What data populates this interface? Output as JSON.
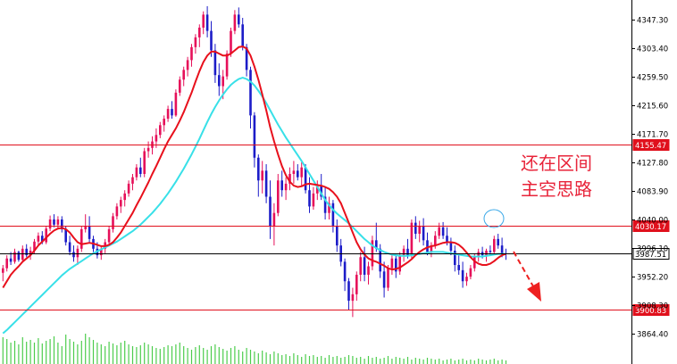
{
  "chart_data": {
    "type": "candlestick",
    "title": "",
    "y_axis": {
      "ticks": [
        4347.3,
        4303.4,
        4259.5,
        4215.6,
        4171.7,
        4127.8,
        4083.9,
        4040.0,
        3996.1,
        3952.2,
        3908.3,
        3864.4
      ],
      "tick_labels": [
        "4347.30",
        "4303.40",
        "4259.50",
        "4215.60",
        "4171.70",
        "4127.80",
        "4083.90",
        "4040.00",
        "3996.10",
        "3952.20",
        "3908.30",
        "3864.40"
      ],
      "range": [
        3838,
        4371
      ]
    },
    "levels": [
      {
        "name": "resistance",
        "value": 4155.47,
        "label": "4155.47",
        "color": "#e0101c",
        "box_fill": "#e0101c",
        "box_text": "#ffffff"
      },
      {
        "name": "resistance",
        "value": 4030.17,
        "label": "4030.17",
        "color": "#e0101c",
        "box_fill": "#e0101c",
        "box_text": "#ffffff"
      },
      {
        "name": "current",
        "value": 3987.51,
        "label": "3987.51",
        "color": "#000000",
        "box_fill": "#ffffff",
        "box_text": "#000000"
      },
      {
        "name": "support",
        "value": 3900.83,
        "label": "3900.83",
        "color": "#e0101c",
        "box_fill": "#e0101c",
        "box_text": "#ffffff"
      }
    ],
    "annotation_lines": [
      "还在区间",
      "主空思路"
    ],
    "colors": {
      "bull": "#e6105a",
      "bear": "#1c1cc8",
      "fast_ma": "#e8101c",
      "slow_ma": "#38e0e8",
      "volume": "#4ccc4c",
      "annotation": "#e8243a",
      "circle": "#3aa8e8",
      "arrow": "#ee2020"
    },
    "candles": [
      [
        3958,
        3970,
        3945,
        3965
      ],
      [
        3965,
        3985,
        3960,
        3980
      ],
      [
        3980,
        3990,
        3970,
        3975
      ],
      [
        3975,
        3995,
        3972,
        3990
      ],
      [
        3990,
        3992,
        3975,
        3978
      ],
      [
        3978,
        4000,
        3975,
        3995
      ],
      [
        3995,
        4002,
        3982,
        3985
      ],
      [
        3985,
        3998,
        3978,
        3992
      ],
      [
        3992,
        4010,
        3988,
        4006
      ],
      [
        4006,
        4020,
        4000,
        4015
      ],
      [
        4015,
        4022,
        4002,
        4005
      ],
      [
        4005,
        4030,
        4002,
        4026
      ],
      [
        4026,
        4046,
        4022,
        4040
      ],
      [
        4040,
        4048,
        4028,
        4032
      ],
      [
        4032,
        4045,
        4025,
        4040
      ],
      [
        4040,
        4045,
        4020,
        4025
      ],
      [
        4025,
        4030,
        4000,
        4005
      ],
      [
        4005,
        4015,
        3985,
        3990
      ],
      [
        3990,
        4000,
        3975,
        3982
      ],
      [
        3982,
        4000,
        3970,
        3995
      ],
      [
        3995,
        4030,
        3990,
        4025
      ],
      [
        4025,
        4048,
        4020,
        4030
      ],
      [
        4030,
        4045,
        4005,
        4010
      ],
      [
        4010,
        4015,
        3990,
        3995
      ],
      [
        3995,
        4005,
        3980,
        3985
      ],
      [
        3985,
        4000,
        3978,
        3995
      ],
      [
        3995,
        4010,
        3988,
        4005
      ],
      [
        4005,
        4030,
        4000,
        4025
      ],
      [
        4025,
        4050,
        4020,
        4045
      ],
      [
        4045,
        4065,
        4040,
        4060
      ],
      [
        4060,
        4075,
        4050,
        4070
      ],
      [
        4070,
        4085,
        4060,
        4080
      ],
      [
        4080,
        4100,
        4075,
        4095
      ],
      [
        4095,
        4110,
        4085,
        4105
      ],
      [
        4105,
        4125,
        4100,
        4120
      ],
      [
        4120,
        4135,
        4105,
        4110
      ],
      [
        4110,
        4150,
        4105,
        4145
      ],
      [
        4145,
        4160,
        4135,
        4150
      ],
      [
        4150,
        4168,
        4140,
        4160
      ],
      [
        4160,
        4180,
        4150,
        4170
      ],
      [
        4170,
        4190,
        4165,
        4185
      ],
      [
        4185,
        4200,
        4175,
        4195
      ],
      [
        4195,
        4215,
        4190,
        4210
      ],
      [
        4210,
        4222,
        4195,
        4200
      ],
      [
        4200,
        4240,
        4198,
        4235
      ],
      [
        4235,
        4260,
        4230,
        4255
      ],
      [
        4255,
        4275,
        4245,
        4270
      ],
      [
        4270,
        4290,
        4260,
        4285
      ],
      [
        4285,
        4310,
        4275,
        4305
      ],
      [
        4305,
        4325,
        4295,
        4320
      ],
      [
        4320,
        4340,
        4305,
        4335
      ],
      [
        4335,
        4360,
        4325,
        4355
      ],
      [
        4355,
        4368,
        4320,
        4330
      ],
      [
        4330,
        4345,
        4290,
        4300
      ],
      [
        4300,
        4310,
        4250,
        4262
      ],
      [
        4262,
        4280,
        4230,
        4245
      ],
      [
        4245,
        4270,
        4225,
        4260
      ],
      [
        4260,
        4300,
        4255,
        4295
      ],
      [
        4295,
        4335,
        4290,
        4330
      ],
      [
        4330,
        4362,
        4325,
        4355
      ],
      [
        4355,
        4366,
        4335,
        4340
      ],
      [
        4340,
        4350,
        4300,
        4305
      ],
      [
        4305,
        4310,
        4260,
        4270
      ],
      [
        4270,
        4275,
        4180,
        4200
      ],
      [
        4200,
        4205,
        4120,
        4135
      ],
      [
        4135,
        4140,
        4075,
        4100
      ],
      [
        4100,
        4130,
        4080,
        4115
      ],
      [
        4115,
        4125,
        4065,
        4075
      ],
      [
        4075,
        4100,
        4010,
        4030
      ],
      [
        4030,
        4065,
        4000,
        4050
      ],
      [
        4050,
        4110,
        4045,
        4100
      ],
      [
        4100,
        4115,
        4075,
        4085
      ],
      [
        4085,
        4105,
        4070,
        4095
      ],
      [
        4095,
        4120,
        4085,
        4110
      ],
      [
        4110,
        4130,
        4095,
        4115
      ],
      [
        4115,
        4125,
        4100,
        4105
      ],
      [
        4105,
        4128,
        4090,
        4120
      ],
      [
        4120,
        4125,
        4080,
        4085
      ],
      [
        4085,
        4105,
        4050,
        4060
      ],
      [
        4060,
        4090,
        4055,
        4080
      ],
      [
        4080,
        4100,
        4070,
        4092
      ],
      [
        4092,
        4110,
        4070,
        4075
      ],
      [
        4075,
        4090,
        4040,
        4050
      ],
      [
        4050,
        4075,
        4040,
        4065
      ],
      [
        4065,
        4070,
        4020,
        4030
      ],
      [
        4030,
        4040,
        3990,
        4000
      ],
      [
        4000,
        4010,
        3968,
        3975
      ],
      [
        3975,
        3980,
        3930,
        3945
      ],
      [
        3945,
        3950,
        3900,
        3915
      ],
      [
        3915,
        3935,
        3890,
        3925
      ],
      [
        3925,
        3960,
        3915,
        3955
      ],
      [
        3955,
        3990,
        3945,
        3982
      ],
      [
        3982,
        3998,
        3945,
        3955
      ],
      [
        3955,
        3975,
        3940,
        3968
      ],
      [
        3968,
        4015,
        3962,
        4008
      ],
      [
        4008,
        4035,
        3990,
        3995
      ],
      [
        3995,
        4002,
        3950,
        3960
      ],
      [
        3960,
        3975,
        3920,
        3935
      ],
      [
        3935,
        3970,
        3930,
        3965
      ],
      [
        3965,
        3985,
        3955,
        3980
      ],
      [
        3980,
        3985,
        3950,
        3960
      ],
      [
        3960,
        3990,
        3955,
        3985
      ],
      [
        3985,
        4000,
        3975,
        3995
      ],
      [
        3995,
        4010,
        3980,
        3985
      ],
      [
        3985,
        4040,
        3980,
        4035
      ],
      [
        4035,
        4045,
        4010,
        4018
      ],
      [
        4018,
        4038,
        4005,
        4030
      ],
      [
        4030,
        4042,
        4000,
        4008
      ],
      [
        4008,
        4020,
        3985,
        3990
      ],
      [
        3990,
        4005,
        3982,
        4000
      ],
      [
        4000,
        4022,
        3995,
        4015
      ],
      [
        4015,
        4035,
        4010,
        4028
      ],
      [
        4028,
        4036,
        4010,
        4015
      ],
      [
        4015,
        4028,
        4000,
        4005
      ],
      [
        4005,
        4012,
        3985,
        3992
      ],
      [
        3992,
        4000,
        3960,
        3970
      ],
      [
        3970,
        3985,
        3955,
        3962
      ],
      [
        3962,
        3975,
        3935,
        3945
      ],
      [
        3945,
        3958,
        3938,
        3952
      ],
      [
        3952,
        3970,
        3948,
        3965
      ],
      [
        3965,
        3988,
        3960,
        3982
      ],
      [
        3982,
        3995,
        3975,
        3990
      ],
      [
        3990,
        3998,
        3980,
        3985
      ],
      [
        3985,
        3995,
        3975,
        3992
      ],
      [
        3992,
        4000,
        3985,
        3990
      ],
      [
        3990,
        4015,
        3988,
        4010
      ],
      [
        4010,
        4018,
        3995,
        4000
      ],
      [
        4000,
        4012,
        3982,
        3988
      ],
      [
        3988,
        3995,
        3978,
        3987
      ]
    ],
    "fast_ma": [
      3935,
      3945,
      3955,
      3962,
      3968,
      3975,
      3980,
      3985,
      3992,
      4000,
      4006,
      4012,
      4018,
      4023,
      4026,
      4027,
      4025,
      4020,
      4012,
      4005,
      4002,
      4003,
      4004,
      4003,
      4001,
      3999,
      3999,
      4001,
      4005,
      4012,
      4020,
      4030,
      4040,
      4050,
      4062,
      4073,
      4085,
      4097,
      4110,
      4122,
      4135,
      4148,
      4160,
      4170,
      4180,
      4192,
      4205,
      4220,
      4235,
      4252,
      4268,
      4282,
      4292,
      4298,
      4298,
      4295,
      4292,
      4292,
      4295,
      4300,
      4305,
      4306,
      4303,
      4292,
      4275,
      4255,
      4232,
      4208,
      4182,
      4160,
      4140,
      4122,
      4108,
      4098,
      4092,
      4090,
      4091,
      4094,
      4095,
      4094,
      4093,
      4092,
      4090,
      4087,
      4082,
      4075,
      4065,
      4050,
      4035,
      4020,
      4005,
      3994,
      3986,
      3980,
      3977,
      3975,
      3972,
      3969,
      3965,
      3963,
      3964,
      3966,
      3970,
      3974,
      3979,
      3985,
      3990,
      3994,
      3997,
      3999,
      4000,
      4002,
      4004,
      4005,
      4005,
      4004,
      4001,
      3996,
      3989,
      3982,
      3976,
      3972,
      3970,
      3970,
      3972,
      3976,
      3981,
      3985,
      3987
    ],
    "slow_ma": [
      3865,
      3870,
      3876,
      3882,
      3888,
      3894,
      3900,
      3906,
      3912,
      3918,
      3924,
      3930,
      3936,
      3942,
      3948,
      3954,
      3959,
      3964,
      3968,
      3972,
      3976,
      3980,
      3984,
      3988,
      3991,
      3994,
      3997,
      4000,
      4003,
      4006,
      4010,
      4014,
      4018,
      4022,
      4027,
      4032,
      4038,
      4044,
      4050,
      4057,
      4064,
      4072,
      4080,
      4089,
      4098,
      4108,
      4118,
      4129,
      4140,
      4152,
      4164,
      4177,
      4190,
      4202,
      4213,
      4223,
      4232,
      4240,
      4247,
      4252,
      4256,
      4258,
      4256,
      4252,
      4246,
      4238,
      4229,
      4219,
      4208,
      4197,
      4186,
      4176,
      4166,
      4157,
      4148,
      4139,
      4130,
      4120,
      4110,
      4100,
      4090,
      4080,
      4070,
      4062,
      4055,
      4049,
      4044,
      4039,
      4034,
      4028,
      4022,
      4016,
      4010,
      4005,
      4000,
      3996,
      3993,
      3990,
      3988,
      3986,
      3985,
      3984,
      3984,
      3984,
      3985,
      3986,
      3987,
      3988,
      3989,
      3990,
      3990,
      3990,
      3990,
      3989,
      3988,
      3987,
      3986,
      3985,
      3984,
      3983,
      3983,
      3983,
      3983,
      3984,
      3985,
      3986,
      3987,
      3987,
      3987
    ],
    "volume": [
      30,
      28,
      24,
      26,
      22,
      30,
      25,
      27,
      24,
      29,
      23,
      26,
      28,
      31,
      24,
      20,
      33,
      28,
      25,
      22,
      26,
      34,
      30,
      27,
      24,
      22,
      20,
      25,
      23,
      21,
      24,
      26,
      22,
      20,
      19,
      21,
      24,
      22,
      20,
      18,
      17,
      19,
      21,
      20,
      22,
      24,
      20,
      18,
      16,
      19,
      21,
      18,
      16,
      20,
      22,
      19,
      17,
      15,
      18,
      20,
      16,
      14,
      18,
      16,
      14,
      12,
      15,
      13,
      11,
      14,
      12,
      10,
      11,
      9,
      12,
      10,
      8,
      11,
      9,
      10,
      8,
      9,
      7,
      10,
      8,
      9,
      7,
      8,
      10,
      9,
      7,
      8,
      6,
      9,
      7,
      8,
      6,
      7,
      9,
      6,
      8,
      7,
      6,
      8,
      5,
      7,
      6,
      5,
      7,
      6,
      5,
      6,
      4,
      5,
      6,
      4,
      5,
      6,
      4,
      5,
      4,
      6,
      5,
      4,
      5,
      6,
      4,
      5,
      4
    ]
  }
}
